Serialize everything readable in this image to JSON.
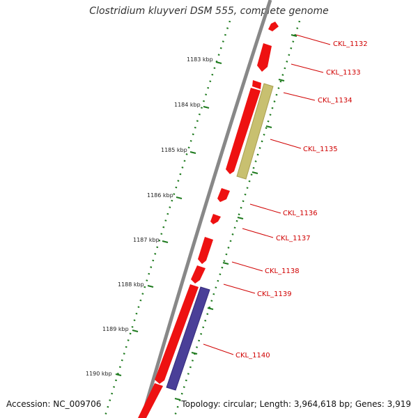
{
  "title": "Clostridium kluyveri DSM 555, complete genome",
  "footer": {
    "accession": "Accession: NC_009706",
    "summary": "Topology: circular; Length: 3,964,618 bp; Genes: 3,919"
  },
  "colors": {
    "backbone": "#888888",
    "gene_forward": "#ee1111",
    "gene_tan": "#c8c070",
    "gene_blue": "#4a3f98",
    "scale_dots": "#1e7a1e",
    "label": "#d00000"
  },
  "scale_ticks": [
    "1183 kbp",
    "1184 kbp",
    "1185 kbp",
    "1186 kbp",
    "1187 kbp",
    "1188 kbp",
    "1189 kbp",
    "1190 kbp"
  ],
  "genes": [
    {
      "label": "CKL_1132",
      "color": "red"
    },
    {
      "label": "CKL_1133",
      "color": "red"
    },
    {
      "label": "CKL_1134",
      "color": "red"
    },
    {
      "label": "CKL_1135",
      "color": "red"
    },
    {
      "label": "CKL_1136",
      "color": "red"
    },
    {
      "label": "CKL_1137",
      "color": "red"
    },
    {
      "label": "CKL_1138",
      "color": "red"
    },
    {
      "label": "CKL_1139",
      "color": "red"
    },
    {
      "label": "CKL_1140",
      "color": "red"
    }
  ]
}
